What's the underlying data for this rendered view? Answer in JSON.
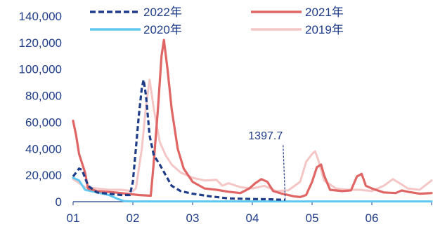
{
  "chart_data": {
    "type": "line",
    "title": "",
    "xlabel": "",
    "ylabel": "",
    "ylim": [
      0,
      140000
    ],
    "yticks": [
      "0",
      "20,000",
      "40,000",
      "60,000",
      "80,000",
      "100,000",
      "120,000",
      "140,000"
    ],
    "xtick_labels": [
      "01",
      "02",
      "03",
      "04",
      "05",
      "06"
    ],
    "xlim": [
      1,
      7
    ],
    "grid": false,
    "legend_position": "top",
    "series": [
      {
        "name": "2022年",
        "color": "#1f3c88",
        "style": "dashed",
        "points": [
          [
            1.0,
            19000
          ],
          [
            1.05,
            22000
          ],
          [
            1.1,
            25000
          ],
          [
            1.15,
            24000
          ],
          [
            1.25,
            12000
          ],
          [
            1.4,
            7000
          ],
          [
            1.6,
            6000
          ],
          [
            1.8,
            5000
          ],
          [
            1.95,
            5000
          ],
          [
            2.0,
            15000
          ],
          [
            2.05,
            40000
          ],
          [
            2.1,
            65000
          ],
          [
            2.15,
            86000
          ],
          [
            2.18,
            92000
          ],
          [
            2.22,
            80000
          ],
          [
            2.28,
            50000
          ],
          [
            2.35,
            35000
          ],
          [
            2.45,
            28000
          ],
          [
            2.55,
            20000
          ],
          [
            2.65,
            12000
          ],
          [
            2.8,
            8000
          ],
          [
            3.0,
            6000
          ],
          [
            3.3,
            4000
          ],
          [
            3.6,
            2500
          ],
          [
            4.0,
            2000
          ],
          [
            4.3,
            1800
          ],
          [
            4.55,
            1397.7
          ]
        ]
      },
      {
        "name": "2021年",
        "color": "#e06565",
        "style": "solid",
        "points": [
          [
            1.0,
            61000
          ],
          [
            1.05,
            50000
          ],
          [
            1.1,
            36000
          ],
          [
            1.2,
            22000
          ],
          [
            1.25,
            10000
          ],
          [
            1.4,
            8000
          ],
          [
            1.7,
            7000
          ],
          [
            1.9,
            6000
          ],
          [
            2.1,
            5000
          ],
          [
            2.3,
            4500
          ],
          [
            2.35,
            30000
          ],
          [
            2.42,
            70000
          ],
          [
            2.48,
            110000
          ],
          [
            2.52,
            122000
          ],
          [
            2.58,
            100000
          ],
          [
            2.65,
            70000
          ],
          [
            2.75,
            40000
          ],
          [
            2.85,
            25000
          ],
          [
            3.0,
            15000
          ],
          [
            3.2,
            10000
          ],
          [
            3.4,
            9000
          ],
          [
            3.6,
            7500
          ],
          [
            3.8,
            6500
          ],
          [
            3.95,
            10000
          ],
          [
            4.05,
            14000
          ],
          [
            4.15,
            17000
          ],
          [
            4.25,
            15000
          ],
          [
            4.35,
            8000
          ],
          [
            4.5,
            6000
          ],
          [
            4.7,
            4000
          ],
          [
            4.8,
            3500
          ],
          [
            4.9,
            5000
          ],
          [
            5.0,
            15000
          ],
          [
            5.08,
            26000
          ],
          [
            5.15,
            28000
          ],
          [
            5.2,
            20000
          ],
          [
            5.3,
            9000
          ],
          [
            5.5,
            8000
          ],
          [
            5.65,
            8500
          ],
          [
            5.75,
            19000
          ],
          [
            5.83,
            21000
          ],
          [
            5.9,
            12000
          ],
          [
            6.0,
            10000
          ],
          [
            6.2,
            7000
          ],
          [
            6.4,
            6500
          ],
          [
            6.5,
            8500
          ],
          [
            6.6,
            7500
          ],
          [
            6.8,
            6000
          ],
          [
            7.0,
            6500
          ]
        ]
      },
      {
        "name": "2020年",
        "color": "#5fc8f0",
        "style": "solid",
        "points": [
          [
            1.0,
            18000
          ],
          [
            1.1,
            16000
          ],
          [
            1.2,
            9000
          ],
          [
            1.4,
            7000
          ],
          [
            1.6,
            5000
          ],
          [
            1.75,
            2000
          ],
          [
            1.85,
            500
          ],
          [
            2.0,
            200
          ],
          [
            3.0,
            200
          ],
          [
            4.0,
            200
          ],
          [
            5.0,
            200
          ],
          [
            6.0,
            200
          ],
          [
            7.0,
            200
          ]
        ]
      },
      {
        "name": "2019年",
        "color": "#f5c6c6",
        "style": "solid",
        "points": [
          [
            1.0,
            17000
          ],
          [
            1.2,
            11000
          ],
          [
            1.4,
            10000
          ],
          [
            1.6,
            9000
          ],
          [
            1.8,
            9000
          ],
          [
            2.0,
            8000
          ],
          [
            2.05,
            10000
          ],
          [
            2.15,
            40000
          ],
          [
            2.22,
            72000
          ],
          [
            2.28,
            92000
          ],
          [
            2.35,
            70000
          ],
          [
            2.45,
            45000
          ],
          [
            2.55,
            35000
          ],
          [
            2.65,
            28000
          ],
          [
            2.8,
            22000
          ],
          [
            3.0,
            18000
          ],
          [
            3.2,
            16000
          ],
          [
            3.4,
            16500
          ],
          [
            3.5,
            12000
          ],
          [
            3.6,
            14000
          ],
          [
            3.8,
            11000
          ],
          [
            4.0,
            10000
          ],
          [
            4.2,
            12000
          ],
          [
            4.4,
            8000
          ],
          [
            4.6,
            8500
          ],
          [
            4.8,
            15000
          ],
          [
            4.9,
            30000
          ],
          [
            5.0,
            36000
          ],
          [
            5.05,
            38000
          ],
          [
            5.1,
            32000
          ],
          [
            5.2,
            16000
          ],
          [
            5.4,
            10000
          ],
          [
            5.6,
            9000
          ],
          [
            5.8,
            9000
          ],
          [
            6.0,
            8000
          ],
          [
            6.2,
            12000
          ],
          [
            6.35,
            17000
          ],
          [
            6.5,
            13000
          ],
          [
            6.6,
            10000
          ],
          [
            6.8,
            9000
          ],
          [
            7.0,
            16000
          ]
        ]
      }
    ],
    "annotations": [
      {
        "text": "1397.7",
        "x": 4.55,
        "y": 1397.7
      }
    ]
  }
}
